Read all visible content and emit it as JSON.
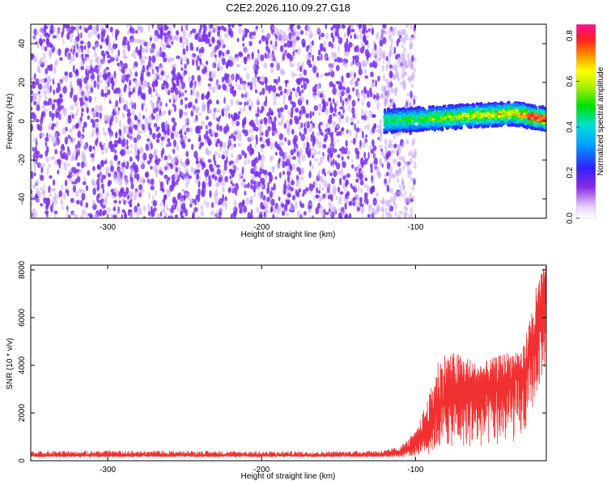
{
  "page": {
    "title": "C2E2.2026.110.09.27.G18"
  },
  "chart_data": [
    {
      "type": "heatmap",
      "title": "C2E2.2026.110.09.27.G18",
      "xlabel": "Height of straight line (km)",
      "ylabel": "Frequency (Hz)",
      "xlim": [
        -350,
        -15
      ],
      "ylim": [
        -50,
        50
      ],
      "x_ticks": [
        "-300",
        "-200",
        "-100"
      ],
      "y_ticks": [
        "40",
        "20",
        "0",
        "-20",
        "-40"
      ],
      "colorbar": {
        "label": "Normalized spectral amplitude",
        "range": [
          0,
          0.85
        ],
        "ticks": [
          "0.0",
          "0.2",
          "0.4",
          "0.6",
          "0.8"
        ],
        "colormap": "rainbow"
      },
      "regions": [
        {
          "name": "noise",
          "x_range": [
            -350,
            -100
          ],
          "freq_range": [
            -50,
            50
          ],
          "amplitude": "low"
        },
        {
          "name": "signal",
          "x_range": [
            -120,
            -15
          ],
          "center_freq": [
            0,
            1,
            2,
            3,
            4,
            1
          ],
          "half_width_hz": 6,
          "amplitude_range": [
            0.2,
            0.85
          ]
        }
      ],
      "colors": {
        "noise": "#7a30f0",
        "noise_faint": "#c9a8f6"
      }
    },
    {
      "type": "line",
      "xlabel": "Height of straight line (km)",
      "ylabel": "SNR (10 * v/v)",
      "xlim": [
        -350,
        -15
      ],
      "ylim": [
        0,
        8200
      ],
      "x_ticks": [
        "-300",
        "-200",
        "-100"
      ],
      "y_ticks": [
        "0",
        "2000",
        "4000",
        "6000",
        "8000"
      ],
      "series": [
        {
          "color": "#f03030",
          "x": [
            -350,
            -300,
            -250,
            -200,
            -150,
            -120,
            -110,
            -100,
            -90,
            -85,
            -80,
            -70,
            -60,
            -50,
            -40,
            -30,
            -20,
            -15
          ],
          "y": [
            220,
            230,
            230,
            220,
            230,
            250,
            350,
            700,
            1800,
            2300,
            2700,
            3000,
            3100,
            3200,
            3400,
            3500,
            5500,
            8000
          ],
          "envelope_min": [
            150,
            150,
            150,
            150,
            150,
            150,
            150,
            200,
            300,
            500,
            600,
            600,
            500,
            600,
            700,
            900,
            3000,
            4000
          ],
          "envelope_max": [
            400,
            420,
            420,
            400,
            400,
            450,
            600,
            1200,
            3000,
            4400,
            4600,
            4500,
            4100,
            4300,
            4600,
            4800,
            7800,
            8200
          ]
        }
      ]
    }
  ]
}
